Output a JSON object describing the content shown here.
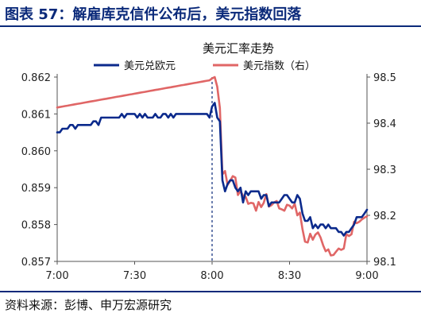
{
  "figure": {
    "title": "图表 57：解雇库克信件公布后，美元指数回落",
    "source": "资料来源：彭博、申万宏源研究"
  },
  "chart_data": {
    "type": "line",
    "title": "美元汇率走势",
    "x_ticks": [
      "7:00",
      "7:30",
      "8:00",
      "8:30",
      "9:00"
    ],
    "xlim": [
      0,
      120
    ],
    "left_axis": {
      "ylim": [
        0.857,
        0.862
      ],
      "ticks": [
        0.857,
        0.858,
        0.859,
        0.86,
        0.861,
        0.862
      ]
    },
    "right_axis": {
      "ylim": [
        98.1,
        98.5
      ],
      "ticks": [
        98.1,
        98.2,
        98.3,
        98.4,
        98.5
      ]
    },
    "event_line_x": 60,
    "colors": {
      "eurusd": "#0b2a8c",
      "dxy": "#e06666",
      "event_line": "#0b2a7a"
    },
    "series": [
      {
        "name": "美元兑欧元",
        "axis": "left",
        "x": [
          0,
          1,
          2,
          3,
          4,
          5,
          6,
          7,
          8,
          9,
          10,
          11,
          12,
          13,
          14,
          15,
          16,
          17,
          18,
          19,
          20,
          21,
          22,
          23,
          24,
          25,
          26,
          27,
          28,
          29,
          30,
          31,
          32,
          33,
          34,
          35,
          36,
          37,
          38,
          39,
          40,
          41,
          42,
          43,
          44,
          45,
          46,
          47,
          48,
          49,
          50,
          51,
          52,
          53,
          54,
          55,
          56,
          57,
          58,
          59,
          60,
          61,
          62,
          63,
          64,
          65,
          66,
          67,
          68,
          69,
          70,
          71,
          72,
          73,
          74,
          75,
          76,
          77,
          78,
          79,
          80,
          81,
          82,
          83,
          84,
          85,
          86,
          87,
          88,
          89,
          90,
          91,
          92,
          93,
          94,
          95,
          96,
          97,
          98,
          99,
          100,
          101,
          102,
          103,
          104,
          105,
          106,
          107,
          108,
          109,
          110,
          111,
          112,
          113,
          114,
          115,
          116,
          117,
          118,
          119,
          120
        ],
        "values": [
          0.8605,
          0.8605,
          0.8606,
          0.8606,
          0.8606,
          0.8607,
          0.8607,
          0.8606,
          0.8607,
          0.8607,
          0.8607,
          0.8607,
          0.8607,
          0.8607,
          0.8608,
          0.8608,
          0.8607,
          0.8609,
          0.8609,
          0.8609,
          0.8609,
          0.8609,
          0.8609,
          0.8609,
          0.8609,
          0.861,
          0.8609,
          0.861,
          0.861,
          0.861,
          0.861,
          0.8609,
          0.861,
          0.8609,
          0.861,
          0.8609,
          0.8609,
          0.8609,
          0.861,
          0.8609,
          0.8609,
          0.861,
          0.861,
          0.8609,
          0.861,
          0.8609,
          0.861,
          0.861,
          0.861,
          0.861,
          0.861,
          0.861,
          0.861,
          0.861,
          0.861,
          0.861,
          0.861,
          0.861,
          0.861,
          0.8609,
          0.8612,
          0.8613,
          0.8609,
          0.8608,
          0.8592,
          0.8589,
          0.8591,
          0.8592,
          0.8592,
          0.859,
          0.8589,
          0.859,
          0.8586,
          0.8589,
          0.8588,
          0.8589,
          0.8589,
          0.8589,
          0.8589,
          0.8587,
          0.8588,
          0.8588,
          0.8585,
          0.8586,
          0.8586,
          0.8586,
          0.8586,
          0.8587,
          0.8588,
          0.8588,
          0.8587,
          0.8586,
          0.8586,
          0.8588,
          0.8587,
          0.8583,
          0.8581,
          0.8581,
          0.8582,
          0.8579,
          0.858,
          0.8579,
          0.858,
          0.858,
          0.8579,
          0.858,
          0.8579,
          0.8579,
          0.8579,
          0.8578,
          0.8578,
          0.8577,
          0.8578,
          0.8578,
          0.8579,
          0.858,
          0.8582,
          0.8582,
          0.8582,
          0.8583,
          0.8584
        ]
      },
      {
        "name": "美元指数（右）",
        "axis": "right",
        "x": [
          0,
          1,
          2,
          3,
          4,
          5,
          6,
          7,
          8,
          9,
          10,
          11,
          12,
          13,
          14,
          15,
          16,
          17,
          18,
          19,
          20,
          21,
          22,
          23,
          24,
          25,
          26,
          27,
          28,
          29,
          30,
          31,
          32,
          33,
          34,
          35,
          36,
          37,
          38,
          39,
          40,
          41,
          42,
          43,
          44,
          45,
          46,
          47,
          48,
          49,
          50,
          51,
          52,
          53,
          54,
          55,
          56,
          57,
          58,
          59,
          60,
          61,
          62,
          63,
          64,
          65,
          66,
          67,
          68,
          69,
          70,
          71,
          72,
          73,
          74,
          75,
          76,
          77,
          78,
          79,
          80,
          81,
          82,
          83,
          84,
          85,
          86,
          87,
          88,
          89,
          90,
          91,
          92,
          93,
          94,
          95,
          96,
          97,
          98,
          99,
          100,
          101,
          102,
          103,
          104,
          105,
          106,
          107,
          108,
          109,
          110,
          111,
          112,
          113,
          114,
          115,
          116,
          117,
          118,
          119,
          120
        ],
        "values": [
          98.434,
          98.435,
          98.436,
          98.437,
          98.438,
          98.439,
          98.44,
          98.441,
          98.442,
          98.443,
          98.444,
          98.445,
          98.446,
          98.447,
          98.448,
          98.449,
          98.45,
          98.451,
          98.452,
          98.453,
          98.454,
          98.455,
          98.456,
          98.457,
          98.458,
          98.459,
          98.46,
          98.461,
          98.462,
          98.463,
          98.464,
          98.465,
          98.466,
          98.467,
          98.468,
          98.469,
          98.47,
          98.471,
          98.472,
          98.473,
          98.474,
          98.475,
          98.476,
          98.477,
          98.478,
          98.479,
          98.48,
          98.481,
          98.482,
          98.483,
          98.484,
          98.485,
          98.486,
          98.487,
          98.488,
          98.489,
          98.49,
          98.491,
          98.492,
          98.493,
          98.497,
          98.5,
          98.479,
          98.433,
          98.289,
          98.296,
          98.266,
          98.275,
          98.285,
          98.282,
          98.244,
          98.253,
          98.242,
          98.24,
          98.225,
          98.227,
          98.226,
          98.21,
          98.229,
          98.218,
          98.227,
          98.246,
          98.219,
          98.222,
          98.228,
          98.231,
          98.215,
          98.213,
          98.21,
          98.223,
          98.221,
          98.215,
          98.225,
          98.2,
          98.206,
          98.17,
          98.143,
          98.141,
          98.16,
          98.147,
          98.158,
          98.163,
          98.152,
          98.135,
          98.122,
          98.126,
          98.113,
          98.114,
          98.121,
          98.128,
          98.125,
          98.128,
          98.159,
          98.155,
          98.159,
          98.186,
          98.183,
          98.186,
          98.191,
          98.195,
          98.198
        ]
      }
    ],
    "legend": {
      "placement": "top"
    }
  }
}
